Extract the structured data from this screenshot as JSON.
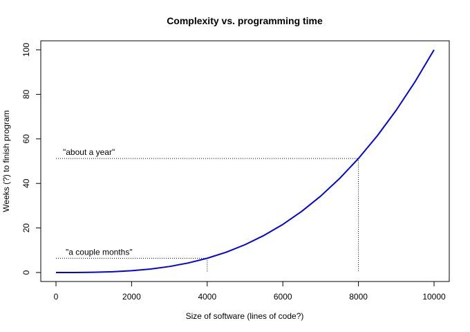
{
  "chart_data": {
    "type": "line",
    "title": "Complexity vs. programming time",
    "xlabel": "Size of software (lines of code?)",
    "ylabel": "Weeks (?) to finish program",
    "xlim": [
      0,
      10000
    ],
    "ylim": [
      0,
      100
    ],
    "x_ticks": [
      0,
      2000,
      4000,
      6000,
      8000,
      10000
    ],
    "y_ticks": [
      0,
      20,
      40,
      60,
      80,
      100
    ],
    "grid": false,
    "legend": "none",
    "series": [
      {
        "color": "#0000ee",
        "x": [
          0,
          500,
          1000,
          1500,
          2000,
          2500,
          3000,
          3500,
          4000,
          4500,
          5000,
          5500,
          6000,
          6500,
          7000,
          7500,
          8000,
          8500,
          9000,
          9500,
          10000
        ],
        "y": [
          0,
          0.01,
          0.1,
          0.34,
          0.8,
          1.56,
          2.7,
          4.29,
          6.4,
          9.11,
          12.5,
          16.64,
          21.6,
          27.46,
          34.3,
          42.19,
          51.2,
          61.41,
          72.9,
          85.74,
          100
        ]
      }
    ],
    "annotations": [
      {
        "text": "\"a couple months\"",
        "x": 4000,
        "y": 6.4
      },
      {
        "text": "\"about a year\"",
        "x": 8000,
        "y": 51.2
      }
    ]
  }
}
